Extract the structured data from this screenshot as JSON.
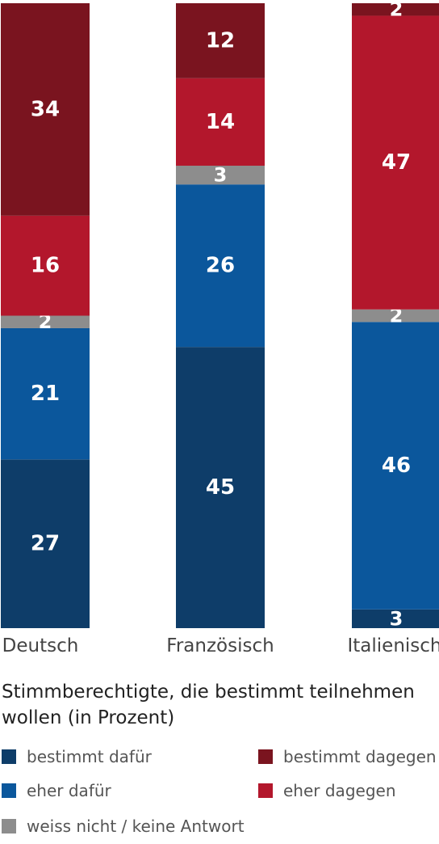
{
  "chart_data": {
    "type": "bar",
    "stacked": true,
    "categories": [
      "Deutsch",
      "Französisch",
      "Italienisch"
    ],
    "series": [
      {
        "name": "bestimmt dafür",
        "values": [
          27,
          45,
          3
        ],
        "color": "#0e3d69"
      },
      {
        "name": "eher dafür",
        "values": [
          21,
          26,
          46
        ],
        "color": "#0b579c"
      },
      {
        "name": "weiss nicht / keine Antwort",
        "values": [
          2,
          3,
          2
        ],
        "color": "#8d8d8d"
      },
      {
        "name": "eher dagegen",
        "values": [
          16,
          14,
          47
        ],
        "color": "#b3172c"
      },
      {
        "name": "bestimmt dagegen",
        "values": [
          34,
          12,
          2
        ],
        "color": "#7a141f"
      }
    ],
    "ylim": [
      0,
      100
    ],
    "grid": false,
    "legend_position": "bottom",
    "title": "Stimmberechtigte, die bestimmt teilnehmen wollen (in Prozent)"
  },
  "legend": [
    {
      "label": "bestimmt dafür",
      "color": "#0e3d69"
    },
    {
      "label": "bestimmt dagegen",
      "color": "#7a141f"
    },
    {
      "label": "eher dafür",
      "color": "#0b579c"
    },
    {
      "label": "eher dagegen",
      "color": "#b3172c"
    },
    {
      "label": "weiss nicht / keine Antwort",
      "color": "#8d8d8d"
    }
  ]
}
